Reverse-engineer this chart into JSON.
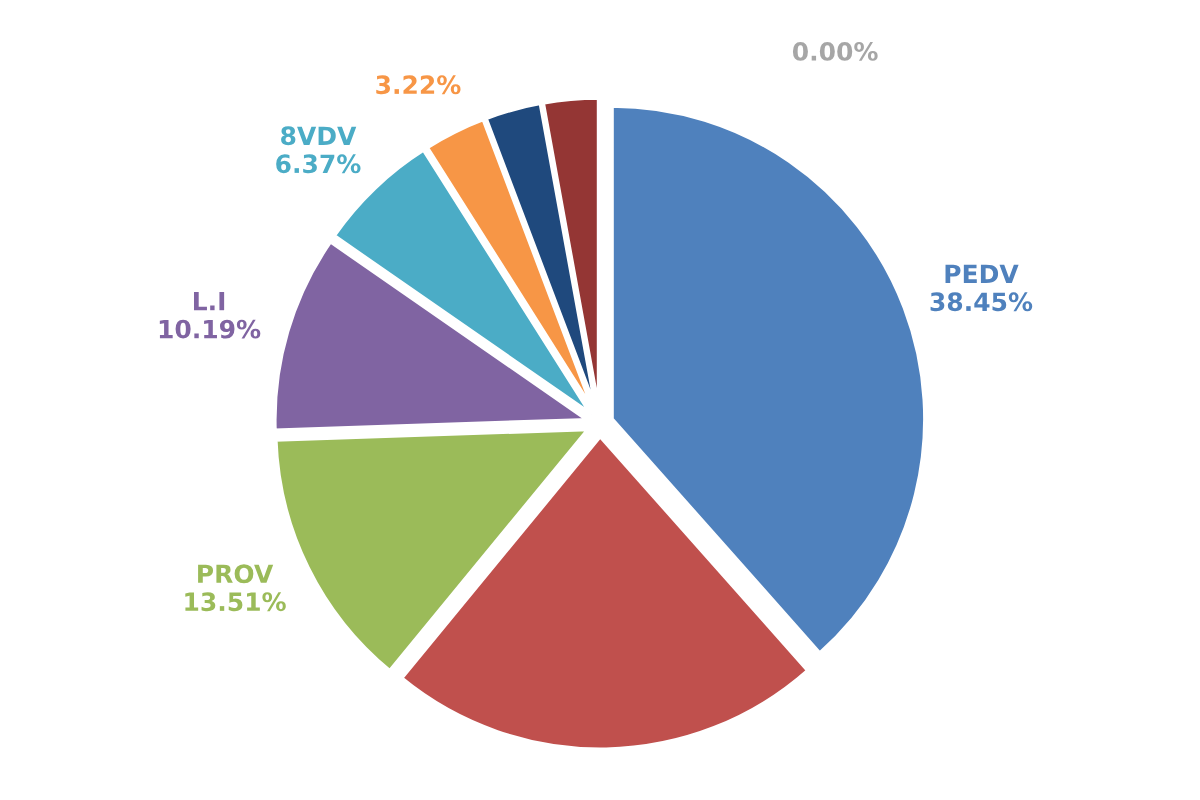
{
  "chart_data": {
    "type": "pie",
    "categories": [
      "PEDV",
      null,
      "PROV",
      "L.I",
      "8VDV",
      null,
      null,
      null,
      null
    ],
    "values": [
      38.45,
      22.5,
      13.51,
      10.19,
      6.37,
      3.22,
      2.9,
      2.86,
      0.0
    ],
    "value_labels": [
      "38.45%",
      null,
      "13.51%",
      "10.19%",
      "6.37%",
      "3.22%",
      null,
      null,
      "0.00%"
    ],
    "colors": [
      "#4f81bd",
      "#c0504d",
      "#9bbb59",
      "#8064a2",
      "#4bacc6",
      "#f79646",
      "#1f497d",
      "#943634",
      "#a6a6a6"
    ]
  }
}
